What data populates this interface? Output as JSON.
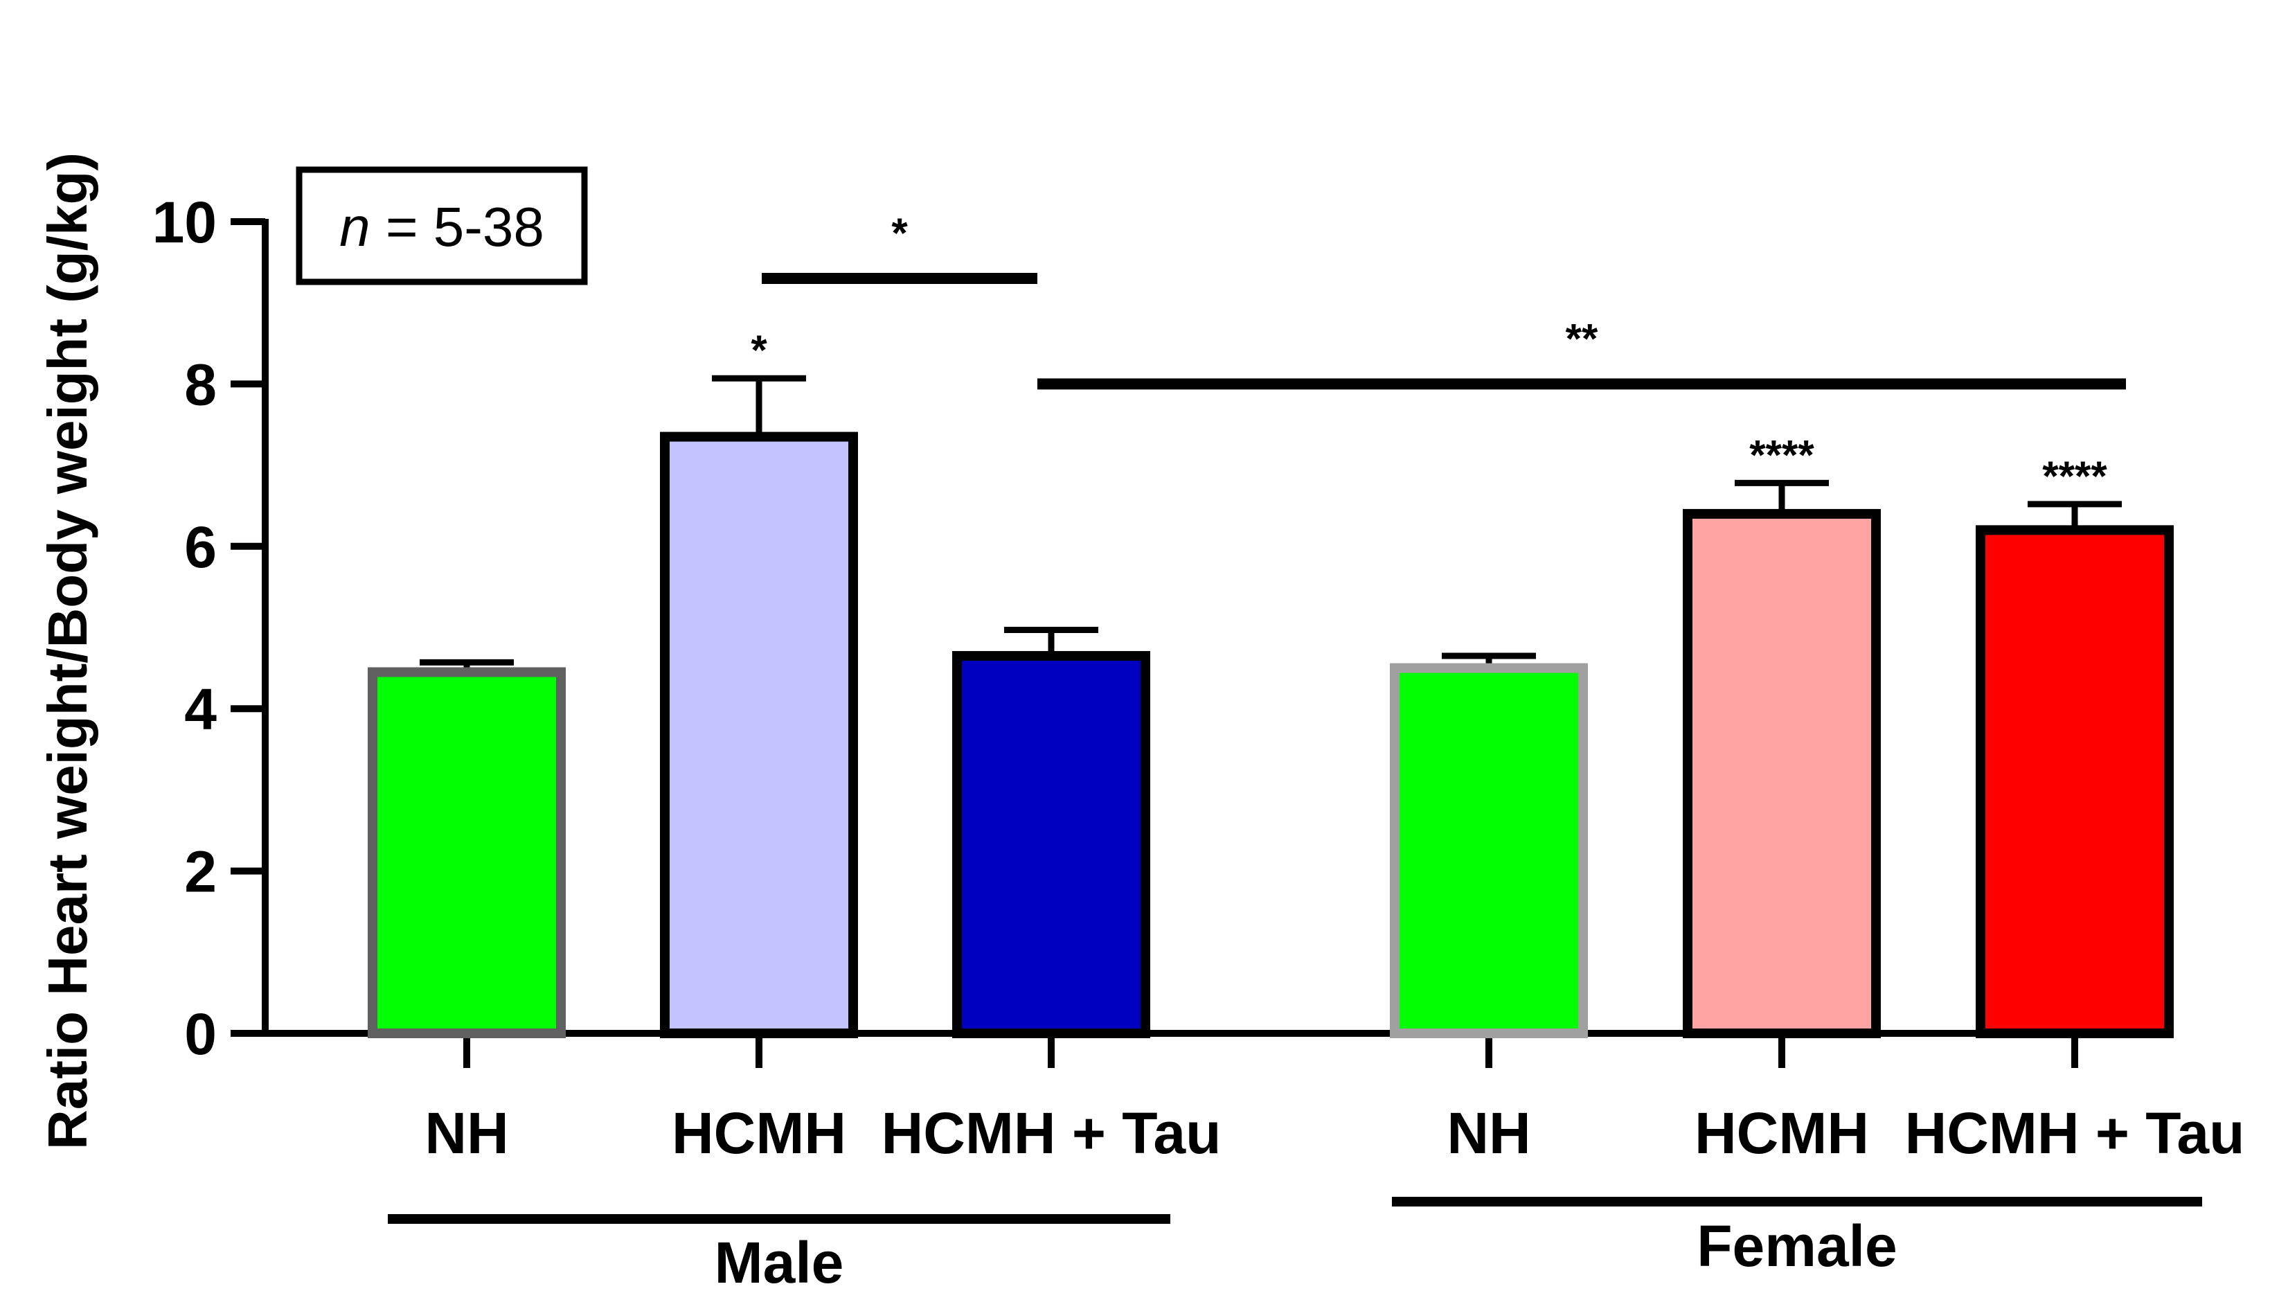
{
  "chart_data": {
    "type": "bar",
    "ylabel": "Ratio Heart weight/Body weight (g/kg)",
    "ylim": [
      0,
      10
    ],
    "yticks": [
      0,
      2,
      4,
      6,
      8,
      10
    ],
    "annotation": {
      "italic": "n",
      "rest": " = 5-38"
    },
    "groups": [
      {
        "name": "Male",
        "categories": [
          0,
          1,
          2
        ]
      },
      {
        "name": "Female",
        "categories": [
          3,
          4,
          5
        ]
      }
    ],
    "categories": [
      "NH",
      "HCMH",
      "HCMH + Tau",
      "NH",
      "HCMH",
      "HCMH + Tau"
    ],
    "values": [
      4.45,
      7.35,
      4.65,
      4.5,
      6.4,
      6.2
    ],
    "errors": [
      0.12,
      0.72,
      0.32,
      0.15,
      0.38,
      0.32
    ],
    "fill_colors": [
      "#00ff00",
      "#c3c3ff",
      "#0000c0",
      "#00ff00",
      "#ffa3a3",
      "#ff0000"
    ],
    "edge_colors": [
      "#606060",
      "#000000",
      "#000000",
      "#a0a0a0",
      "#000000",
      "#000000"
    ],
    "bar_significance": [
      "",
      "*",
      "",
      "",
      "****",
      "****"
    ],
    "comparisons": [
      {
        "from": 1,
        "to": 2,
        "y": 9.3,
        "label": "*"
      },
      {
        "from": 2,
        "to": 5,
        "y": 8.0,
        "label": "**"
      }
    ]
  }
}
